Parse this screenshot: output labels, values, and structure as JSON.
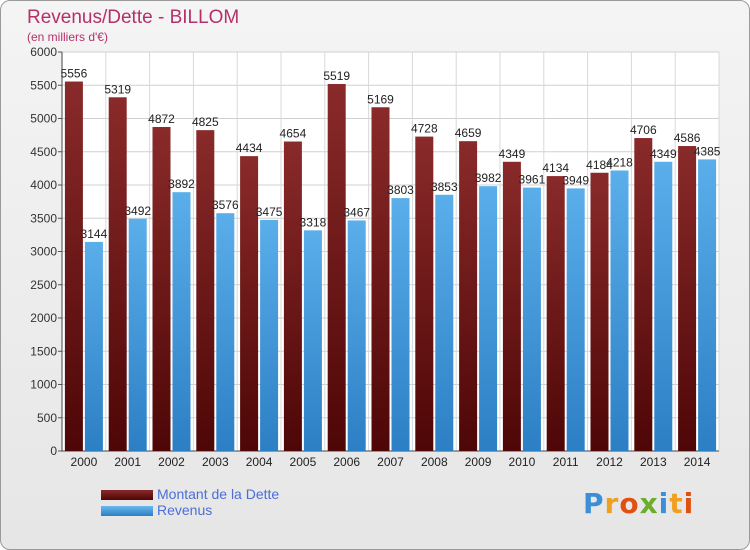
{
  "header": {
    "title": "Revenus/Dette - BILLOM",
    "subtitle": "(en milliers d'€)"
  },
  "chart_data": {
    "type": "bar",
    "categories": [
      "2000",
      "2001",
      "2002",
      "2003",
      "2004",
      "2005",
      "2006",
      "2007",
      "2008",
      "2009",
      "2010",
      "2011",
      "2012",
      "2013",
      "2014"
    ],
    "series": [
      {
        "name": "Montant de la Dette",
        "color": "#7e1d1d",
        "values": [
          5556,
          5319,
          4872,
          4825,
          4434,
          4654,
          5519,
          5169,
          4728,
          4659,
          4349,
          4134,
          4184,
          4706,
          4586
        ]
      },
      {
        "name": "Revenus",
        "color": "#4ea2e4",
        "values": [
          3144,
          3492,
          3892,
          3576,
          3475,
          3318,
          3467,
          3803,
          3853,
          3982,
          3961,
          3949,
          4218,
          4349,
          4385
        ]
      }
    ],
    "ylim": [
      0,
      6000
    ],
    "yticks": [
      0,
      500,
      1000,
      1500,
      2000,
      2500,
      3000,
      3500,
      4000,
      4500,
      5000,
      5500,
      6000
    ],
    "grid": true,
    "legend_position": "bottom-left"
  },
  "logo": {
    "letters": [
      "P",
      "r",
      "o",
      "x",
      "i",
      "t",
      "i"
    ],
    "colors": [
      "#3a8fd8",
      "#f0a020",
      "#e05010",
      "#6aae2a",
      "#3a8fd8",
      "#f0a020",
      "#e05010"
    ]
  }
}
